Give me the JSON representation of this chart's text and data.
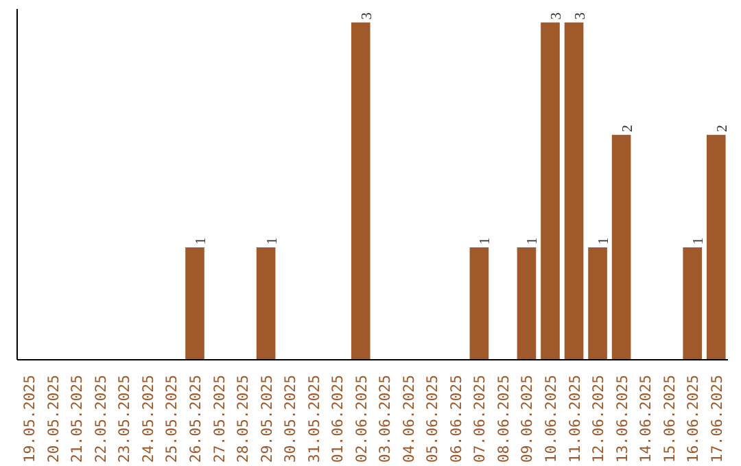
{
  "chart_data": {
    "type": "bar",
    "categories": [
      "19.05.2025",
      "20.05.2025",
      "21.05.2025",
      "22.05.2025",
      "23.05.2025",
      "24.05.2025",
      "25.05.2025",
      "26.05.2025",
      "27.05.2025",
      "28.05.2025",
      "29.05.2025",
      "30.05.2025",
      "31.05.2025",
      "01.06.2025",
      "02.06.2025",
      "03.06.2025",
      "04.06.2025",
      "05.06.2025",
      "06.06.2025",
      "07.06.2025",
      "08.06.2025",
      "09.06.2025",
      "10.06.2025",
      "11.06.2025",
      "12.06.2025",
      "13.06.2025",
      "14.06.2025",
      "15.06.2025",
      "16.06.2025",
      "17.06.2025"
    ],
    "values": [
      0,
      0,
      0,
      0,
      0,
      0,
      0,
      1,
      0,
      0,
      1,
      0,
      0,
      0,
      3,
      0,
      0,
      0,
      0,
      1,
      0,
      1,
      3,
      3,
      1,
      2,
      0,
      0,
      1,
      2
    ],
    "value_labels": [
      null,
      null,
      null,
      null,
      null,
      null,
      null,
      "1",
      null,
      null,
      "1",
      null,
      null,
      null,
      "3",
      null,
      null,
      null,
      null,
      "1",
      null,
      "1",
      "3",
      "3",
      "1",
      "2",
      null,
      null,
      "1",
      "2"
    ],
    "color": "#a0592a",
    "grid": false,
    "tick_labels": "x"
  }
}
